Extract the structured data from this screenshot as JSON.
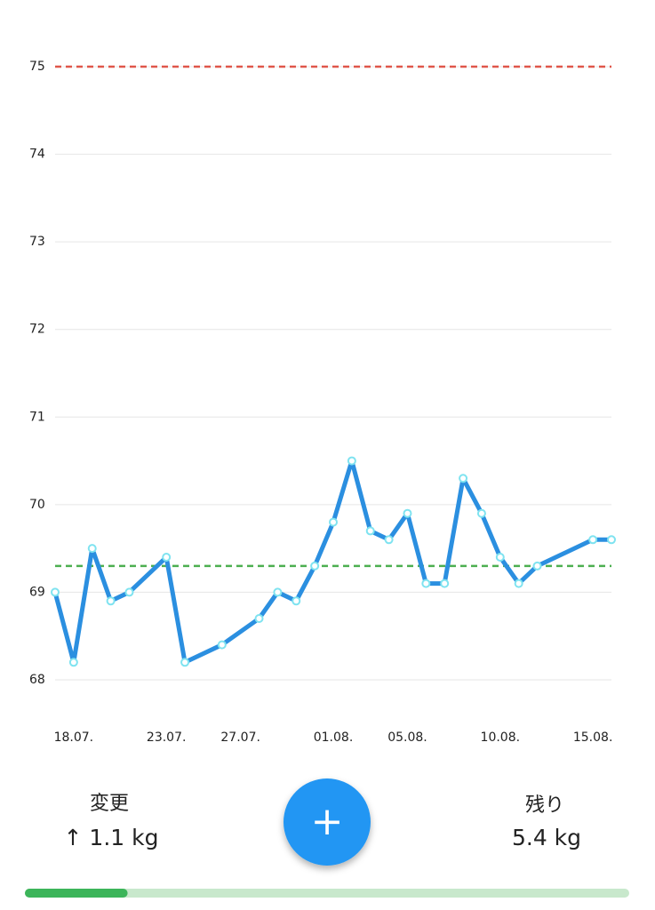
{
  "chart_data": {
    "type": "line",
    "x": [
      "17.07.",
      "18.07.",
      "19.07.",
      "20.07.",
      "21.07.",
      "23.07.",
      "24.07.",
      "26.07.",
      "28.07.",
      "29.07.",
      "30.07.",
      "31.07.",
      "01.08.",
      "02.08.",
      "03.08.",
      "04.08.",
      "05.08.",
      "06.08.",
      "07.08.",
      "08.08.",
      "09.08.",
      "10.08.",
      "11.08.",
      "12.08.",
      "15.08.",
      "16.08."
    ],
    "values": [
      69.0,
      68.2,
      69.5,
      68.9,
      69.0,
      69.4,
      68.2,
      68.4,
      68.7,
      69.0,
      68.9,
      69.3,
      69.8,
      70.5,
      69.7,
      69.6,
      69.9,
      69.1,
      69.1,
      70.3,
      69.9,
      69.4,
      69.1,
      69.3,
      69.6,
      69.6
    ],
    "color": "#2b8fe0",
    "xlim": [
      "17.07.",
      "16.08."
    ],
    "xticks": [
      "18.07.",
      "23.07.",
      "27.07.",
      "01.08.",
      "05.08.",
      "10.08.",
      "15.08."
    ],
    "ylim": [
      68,
      75
    ],
    "yticks": [
      68,
      69,
      70,
      71,
      72,
      73,
      74,
      75
    ],
    "grid": true,
    "reference_lines": [
      {
        "value": 75,
        "color": "#e0574a"
      },
      {
        "value": 69.3,
        "color": "#4caf50"
      }
    ]
  },
  "summary": {
    "change_label": "変更",
    "change_value": "↑ 1.1 kg",
    "remaining_label": "残り",
    "remaining_value": "5.4 kg"
  },
  "add_button": "+",
  "progress_bar": {
    "value": 0.17,
    "color": "#3cb55a",
    "track_color": "#c8e8cc"
  }
}
